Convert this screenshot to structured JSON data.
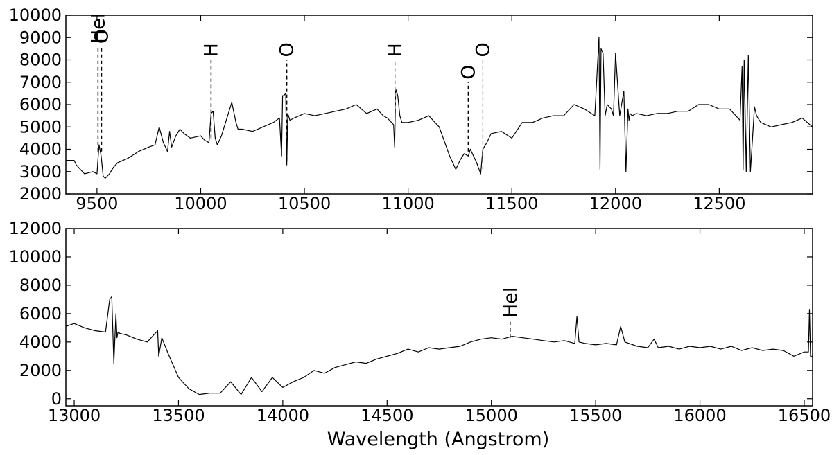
{
  "chart_data": [
    {
      "type": "line",
      "title": "",
      "xlabel": "",
      "ylabel": "",
      "xlim": [
        9350,
        12950
      ],
      "ylim": [
        2000,
        10000
      ],
      "xticks": [
        9500,
        10000,
        10500,
        11000,
        11500,
        12000,
        12500
      ],
      "xtick_labels": [
        "9500",
        "10000",
        "10500",
        "11000",
        "11500",
        "12000",
        "12500"
      ],
      "yticks": [
        2000,
        3000,
        4000,
        5000,
        6000,
        7000,
        8000,
        9000,
        10000
      ],
      "ytick_labels": [
        "2000",
        "3000",
        "4000",
        "5000",
        "6000",
        "7000",
        "8000",
        "9000",
        "10000"
      ],
      "grid": false,
      "line_color": "#000000",
      "series": [
        {
          "x": [
            9350,
            9390,
            9400,
            9420,
            9440,
            9460,
            9480,
            9500,
            9505,
            9510,
            9520,
            9530,
            9540,
            9560,
            9580,
            9600,
            9650,
            9700,
            9750,
            9780,
            9800,
            9820,
            9840,
            9850,
            9860,
            9880,
            9900,
            9920,
            9950,
            10000,
            10020,
            10040,
            10050,
            10060,
            10070,
            10080,
            10100,
            10150,
            10170,
            10180,
            10200,
            10250,
            10300,
            10350,
            10380,
            10390,
            10395,
            10400,
            10410,
            10415,
            10420,
            10430,
            10450,
            10500,
            10550,
            10600,
            10650,
            10700,
            10750,
            10800,
            10850,
            10880,
            10900,
            10930,
            10935,
            10940,
            10950,
            10960,
            10970,
            11000,
            11050,
            11100,
            11150,
            11200,
            11230,
            11250,
            11270,
            11290,
            11300,
            11330,
            11350,
            11360,
            11380,
            11400,
            11450,
            11500,
            11550,
            11600,
            11650,
            11700,
            11750,
            11800,
            11850,
            11900,
            11920,
            11925,
            11930,
            11940,
            11950,
            11960,
            11980,
            11990,
            12000,
            12020,
            12040,
            12050,
            12060,
            12065,
            12070,
            12080,
            12100,
            12150,
            12200,
            12250,
            12300,
            12350,
            12400,
            12450,
            12500,
            12550,
            12600,
            12610,
            12615,
            12620,
            12630,
            12640,
            12650,
            12660,
            12670,
            12680,
            12700,
            12750,
            12800,
            12850,
            12900,
            12950
          ],
          "y": [
            3500,
            3500,
            3300,
            3100,
            2900,
            2950,
            3000,
            2900,
            3600,
            4200,
            3700,
            2800,
            2700,
            2900,
            3200,
            3400,
            3600,
            3900,
            4100,
            4200,
            5000,
            4300,
            3900,
            4800,
            4100,
            4600,
            4900,
            4700,
            4500,
            4600,
            4400,
            4300,
            5600,
            5700,
            4500,
            4200,
            4600,
            6100,
            5200,
            4900,
            4900,
            4800,
            5000,
            5200,
            5400,
            3700,
            6400,
            6400,
            6500,
            3300,
            5600,
            5300,
            5400,
            5600,
            5500,
            5600,
            5700,
            5800,
            6000,
            5600,
            5800,
            5500,
            5400,
            5100,
            4100,
            6700,
            6400,
            5500,
            5200,
            5200,
            5300,
            5500,
            5000,
            3700,
            3100,
            3500,
            3800,
            3700,
            4000,
            3400,
            2900,
            4000,
            4300,
            4700,
            4800,
            4500,
            5200,
            5200,
            5400,
            5500,
            5500,
            6000,
            5800,
            5500,
            9000,
            3100,
            8500,
            8300,
            5500,
            6000,
            5800,
            5500,
            8300,
            5500,
            6600,
            3000,
            5800,
            5300,
            5600,
            5500,
            5600,
            5500,
            5600,
            5600,
            5700,
            5700,
            6000,
            6000,
            5800,
            5800,
            5300,
            7700,
            3100,
            8000,
            3000,
            8200,
            3000,
            4400,
            5900,
            5500,
            5200,
            5000,
            5100,
            5200,
            5400,
            5000
          ]
        }
      ],
      "annotations": [
        {
          "text": "HeI",
          "x": 9505
        },
        {
          "text": "O",
          "x": 9522
        },
        {
          "text": "H",
          "x": 10050
        },
        {
          "text": "O",
          "x": 10415
        },
        {
          "text": "H",
          "x": 10938,
          "color": "#aaaaaa"
        },
        {
          "text": "O",
          "x": 11290
        },
        {
          "text": "O",
          "x": 11360,
          "color": "#aaaaaa"
        }
      ]
    },
    {
      "type": "line",
      "title": "",
      "xlabel": "Wavelength (Angstrom)",
      "ylabel": "",
      "xlim": [
        12960,
        16540
      ],
      "ylim": [
        -500,
        12000
      ],
      "xticks": [
        13000,
        13500,
        14000,
        14500,
        15000,
        15500,
        16000,
        16500
      ],
      "xtick_labels": [
        "13000",
        "13500",
        "14000",
        "14500",
        "15000",
        "15500",
        "16000",
        "16500"
      ],
      "yticks": [
        0,
        2000,
        4000,
        6000,
        8000,
        10000,
        12000
      ],
      "ytick_labels": [
        "0",
        "2000",
        "4000",
        "6000",
        "8000",
        "10000",
        "12000"
      ],
      "grid": false,
      "line_color": "#000000",
      "series": [
        {
          "x": [
            12960,
            13000,
            13050,
            13100,
            13150,
            13170,
            13180,
            13190,
            13200,
            13205,
            13210,
            13220,
            13250,
            13300,
            13350,
            13400,
            13405,
            13420,
            13450,
            13500,
            13550,
            13600,
            13650,
            13700,
            13750,
            13800,
            13850,
            13900,
            13950,
            14000,
            14050,
            14100,
            14150,
            14200,
            14250,
            14300,
            14350,
            14400,
            14450,
            14500,
            14550,
            14600,
            14650,
            14700,
            14750,
            14800,
            14850,
            14900,
            14950,
            15000,
            15050,
            15100,
            15150,
            15200,
            15250,
            15300,
            15350,
            15400,
            15410,
            15420,
            15450,
            15500,
            15550,
            15600,
            15620,
            15640,
            15700,
            15750,
            15780,
            15800,
            15850,
            15900,
            15950,
            16000,
            16050,
            16100,
            16150,
            16200,
            16250,
            16300,
            16350,
            16400,
            16450,
            16500,
            16520,
            16525,
            16530,
            16540
          ],
          "y": [
            5100,
            5300,
            5000,
            4800,
            4700,
            7000,
            7200,
            2500,
            6000,
            4300,
            4700,
            4600,
            4500,
            4200,
            4000,
            4800,
            3000,
            4300,
            3200,
            1500,
            700,
            300,
            400,
            400,
            1200,
            300,
            1500,
            500,
            1500,
            800,
            1200,
            1500,
            2000,
            1800,
            2200,
            2400,
            2600,
            2500,
            2800,
            3000,
            3200,
            3500,
            3300,
            3600,
            3500,
            3600,
            3700,
            4000,
            4200,
            4300,
            4200,
            4400,
            4300,
            4200,
            4100,
            4000,
            4100,
            3900,
            5800,
            4000,
            3900,
            3800,
            3900,
            3800,
            5100,
            4000,
            3700,
            3600,
            4200,
            3600,
            3700,
            3500,
            3700,
            3600,
            3700,
            3500,
            3700,
            3400,
            3600,
            3400,
            3500,
            3400,
            3000,
            3300,
            3300,
            6300,
            3000,
            3000
          ]
        }
      ],
      "annotations": [
        {
          "text": "HeI",
          "x": 15090
        }
      ]
    }
  ]
}
